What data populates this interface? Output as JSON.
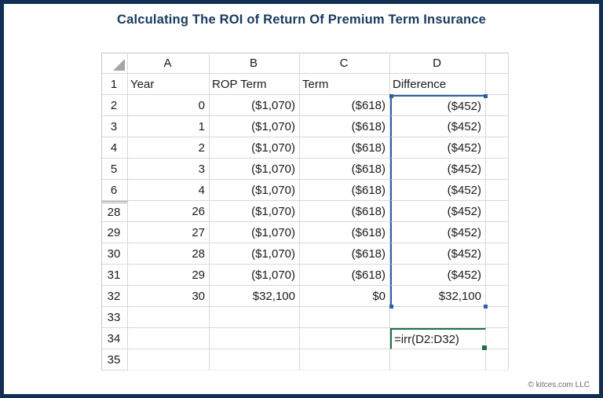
{
  "title": "Calculating The ROI of Return Of Premium Term Insurance",
  "footer": {
    "copyright": "© kitces.com LLC"
  },
  "colors": {
    "frame_navy": "#112f52",
    "title_navy": "#173a5e",
    "negative_red": "#d23b3b",
    "excel_green": "#1e7145",
    "selection_blue": "#2e5f9e",
    "selection_fill": "#e9eff8"
  },
  "spreadsheet": {
    "column_headers": [
      "A",
      "B",
      "C",
      "D",
      ""
    ],
    "selection": {
      "column": "D",
      "first_row": "2",
      "last_row": "32"
    },
    "active_cell": {
      "column": "D",
      "row": "34",
      "formula": "=irr(D2:D32)"
    },
    "hidden_break_at_row": "28",
    "rows": [
      {
        "num": "1",
        "cells": [
          "Year",
          "ROP Term",
          "Term",
          "Difference"
        ]
      },
      {
        "num": "2",
        "cells": [
          "0",
          "($1,070)",
          "($618)",
          "($452)"
        ]
      },
      {
        "num": "3",
        "cells": [
          "1",
          "($1,070)",
          "($618)",
          "($452)"
        ]
      },
      {
        "num": "4",
        "cells": [
          "2",
          "($1,070)",
          "($618)",
          "($452)"
        ]
      },
      {
        "num": "5",
        "cells": [
          "3",
          "($1,070)",
          "($618)",
          "($452)"
        ]
      },
      {
        "num": "6",
        "cells": [
          "4",
          "($1,070)",
          "($618)",
          "($452)"
        ]
      },
      {
        "num": "28",
        "cells": [
          "26",
          "($1,070)",
          "($618)",
          "($452)"
        ]
      },
      {
        "num": "29",
        "cells": [
          "27",
          "($1,070)",
          "($618)",
          "($452)"
        ]
      },
      {
        "num": "30",
        "cells": [
          "28",
          "($1,070)",
          "($618)",
          "($452)"
        ]
      },
      {
        "num": "31",
        "cells": [
          "29",
          "($1,070)",
          "($618)",
          "($452)"
        ]
      },
      {
        "num": "32",
        "cells": [
          "30",
          "$32,100",
          "$0",
          "$32,100"
        ]
      },
      {
        "num": "33",
        "cells": [
          "",
          "",
          "",
          ""
        ]
      },
      {
        "num": "34",
        "cells": [
          "",
          "",
          "",
          "=irr(D2:D32)"
        ]
      },
      {
        "num": "35",
        "cells": [
          "",
          "",
          "",
          ""
        ]
      }
    ]
  }
}
